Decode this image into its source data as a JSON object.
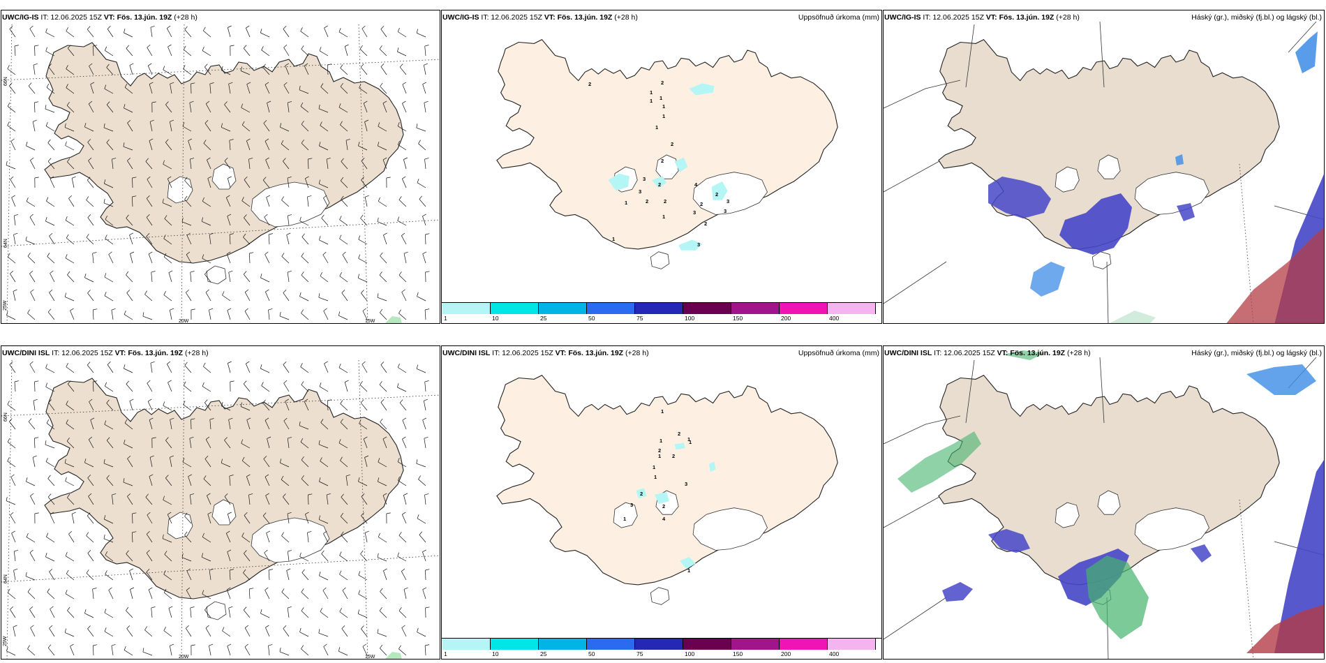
{
  "panels": [
    {
      "id": "p1",
      "title_model": "UWC/IG-IS",
      "title_it": " IT: 12.06.2025 15Z ",
      "title_vt": "VT: Fös. 13.jún. 19Z",
      "title_lead": " (+28 h)",
      "right": ""
    },
    {
      "id": "p2",
      "title_model": "UWC/IG-IS",
      "title_it": " IT: 12.06.2025 15Z ",
      "title_vt": "VT: Fös. 13.jún. 19Z",
      "title_lead": " (+28 h)",
      "right": "Uppsöfnuð úrkoma (mm)"
    },
    {
      "id": "p3",
      "title_model": "UWC/IG-IS",
      "title_it": " IT: 12.06.2025 15Z ",
      "title_vt": "VT: Fös. 13.jún. 19Z",
      "title_lead": " (+28 h)",
      "right": "Háský (gr.), miðský (fj.bl.) og lágský (bl.)"
    },
    {
      "id": "p4",
      "title_model": "UWC/DINI ISL",
      "title_it": " IT: 12.06.2025 15Z ",
      "title_vt": "VT: Fös. 13.jún. 19Z",
      "title_lead": " (+28 h)",
      "right": ""
    },
    {
      "id": "p5",
      "title_model": "UWC/DINI ISL",
      "title_it": " IT: 12.06.2025 15Z ",
      "title_vt": "VT: Fös. 13.jún. 19Z",
      "title_lead": " (+28 h)",
      "right": "Uppsöfnuð úrkoma (mm)"
    },
    {
      "id": "p6",
      "title_model": "UWC/DINI ISL",
      "title_it": " IT: 12.06.2025 15Z ",
      "title_vt": "VT: Fös. 13.jún. 19Z",
      "title_lead": " (+28 h)",
      "right": "Háský (gr.), miðský (fj.bl.) og lágský (bl.)"
    }
  ],
  "grid_labels": {
    "lat66": "66N",
    "lat64": "64N",
    "lon25": "25W",
    "lon20": "20W",
    "lon15": "15W"
  },
  "colorbar": [
    {
      "label": "1",
      "color": "#b4f5f5"
    },
    {
      "label": "10",
      "color": "#00e6e6"
    },
    {
      "label": "25",
      "color": "#00b4e6"
    },
    {
      "label": "50",
      "color": "#2b6bf0"
    },
    {
      "label": "75",
      "color": "#2428b4"
    },
    {
      "label": "100",
      "color": "#690050"
    },
    {
      "label": "150",
      "color": "#a0148c"
    },
    {
      "label": "200",
      "color": "#f014b4"
    },
    {
      "label": "400",
      "color": "#f5b4f0"
    }
  ],
  "precip_labels_top": [
    "2",
    "1",
    "1",
    "1",
    "1",
    "1",
    "1",
    "2",
    "2",
    "3",
    "3",
    "2",
    "1",
    "2",
    "2",
    "4",
    "2",
    "3",
    "2",
    "3",
    "3",
    "1",
    "2",
    "3",
    "1",
    "2"
  ],
  "precip_labels_bottom": [
    "1",
    "2",
    "1",
    "2",
    "1",
    "1",
    "1",
    "2",
    "1",
    "1",
    "3",
    "2",
    "2",
    "3",
    "1",
    "4",
    "1"
  ],
  "colors": {
    "land_wind": "#ecdfcf",
    "land_precip": "#fdf0e2",
    "land_cloud": "#e9ddd0",
    "low_cloud": "#4646c8",
    "mid_cloud": "#3c8ce6",
    "high_cloud": "#46b46e",
    "lowmid_red": "#b43c46"
  }
}
